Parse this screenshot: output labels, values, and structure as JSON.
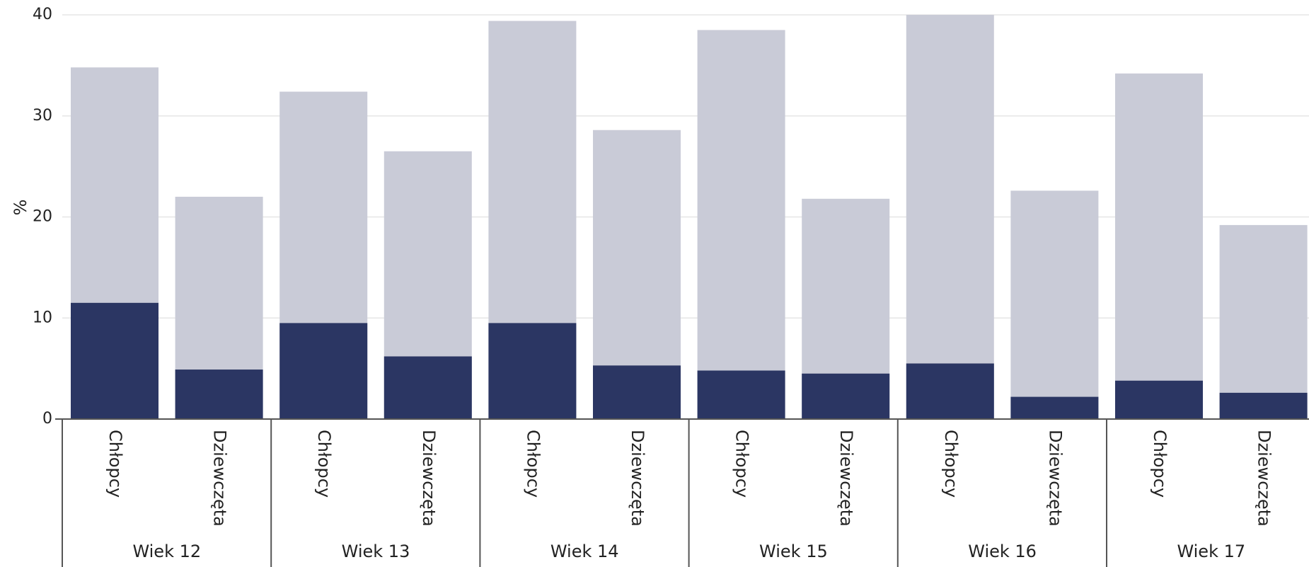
{
  "chart_data": {
    "type": "bar",
    "ylabel": "%",
    "ylim": [
      0,
      40
    ],
    "yticks": [
      0,
      10,
      20,
      30,
      40
    ],
    "grid": true,
    "bars": [
      {
        "group": "Wiek 12",
        "category": "Chłopcy",
        "total": 34.8,
        "dark": 11.5
      },
      {
        "group": "Wiek 12",
        "category": "Dziewczęta",
        "total": 22.0,
        "dark": 4.9
      },
      {
        "group": "Wiek 13",
        "category": "Chłopcy",
        "total": 32.4,
        "dark": 9.5
      },
      {
        "group": "Wiek 13",
        "category": "Dziewczęta",
        "total": 26.5,
        "dark": 6.2
      },
      {
        "group": "Wiek 14",
        "category": "Chłopcy",
        "total": 39.4,
        "dark": 9.5
      },
      {
        "group": "Wiek 14",
        "category": "Dziewczęta",
        "total": 28.6,
        "dark": 5.3
      },
      {
        "group": "Wiek 15",
        "category": "Chłopcy",
        "total": 38.5,
        "dark": 4.8
      },
      {
        "group": "Wiek 15",
        "category": "Dziewczęta",
        "total": 21.8,
        "dark": 4.5
      },
      {
        "group": "Wiek 16",
        "category": "Chłopcy",
        "total": 40.0,
        "dark": 5.5
      },
      {
        "group": "Wiek 16",
        "category": "Dziewczęta",
        "total": 22.6,
        "dark": 2.2
      },
      {
        "group": "Wiek 17",
        "category": "Chłopcy",
        "total": 34.2,
        "dark": 3.8
      },
      {
        "group": "Wiek 17",
        "category": "Dziewczęta",
        "total": 19.2,
        "dark": 2.6
      }
    ],
    "groups": [
      "Wiek 12",
      "Wiek 13",
      "Wiek 14",
      "Wiek 15",
      "Wiek 16",
      "Wiek 17"
    ],
    "colors": {
      "dark": "#2b3663",
      "light": "#c9cbd7",
      "grid": "#e6e6e6",
      "axis": "#555555"
    }
  }
}
